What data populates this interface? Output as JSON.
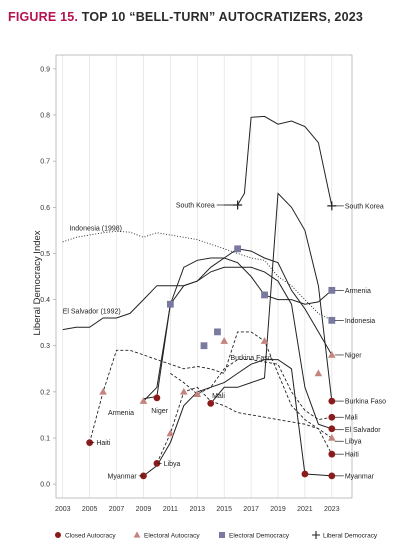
{
  "title": {
    "figure_label": "FIGURE 15.",
    "text": "TOP 10 “BELL-TURN” AUTOCRATIZERS, 2023"
  },
  "colors": {
    "closed": "#8b1a1a",
    "electoral_autocracy": "#c4847e",
    "electoral_democracy": "#7a7aa0",
    "liberal": "#222222",
    "line": "#222222",
    "grid": "#dcdcdc",
    "axis": "#999999"
  },
  "chart_data": {
    "type": "line",
    "ylabel": "Liberal Democracy Index",
    "xlabel": "",
    "xlim": [
      2002.5,
      2024.5
    ],
    "ylim": [
      -0.03,
      0.93
    ],
    "x_ticks": [
      2003,
      2005,
      2007,
      2009,
      2011,
      2013,
      2015,
      2017,
      2019,
      2021,
      2023
    ],
    "y_ticks": [
      0.0,
      0.1,
      0.2,
      0.3,
      0.4,
      0.5,
      0.6,
      0.7,
      0.8,
      0.9
    ],
    "y_tick_labels": [
      "0.0",
      "0.1",
      "0.2",
      "0.3",
      "0.4",
      "0.5",
      "0.6",
      "0.7",
      "0.8",
      "0.9"
    ],
    "grid": "vertical",
    "legend": [
      {
        "key": "closed",
        "label": "Closed Autocracy"
      },
      {
        "key": "electoral_autocracy",
        "label": "Electoral Autocracy"
      },
      {
        "key": "electoral_democracy",
        "label": "Electoral Democracy"
      },
      {
        "key": "liberal",
        "label": "Liberal Democracy"
      }
    ],
    "legend_position": "bottom",
    "series": [
      {
        "name": "South Korea",
        "style": "solid",
        "x": [
          2015,
          2016,
          2016.5,
          2017,
          2018,
          2019,
          2020,
          2021,
          2022,
          2023
        ],
        "y": [
          0.605,
          0.605,
          0.63,
          0.795,
          0.797,
          0.78,
          0.787,
          0.775,
          0.74,
          0.603
        ],
        "start": {
          "x": 2016,
          "y": 0.605,
          "regime": "liberal"
        },
        "end": {
          "x": 2023,
          "y": 0.603,
          "regime": "liberal"
        },
        "start_label": {
          "text": "South Korea",
          "x": 2014.3,
          "y": 0.605,
          "anchor": "end",
          "leader": true
        },
        "end_label": {
          "text": "South Korea",
          "leader": true
        }
      },
      {
        "name": "Indonesia",
        "style": "dotted",
        "x": [
          2003,
          2004,
          2005,
          2006,
          2007,
          2008,
          2009,
          2010,
          2011,
          2012,
          2013,
          2014,
          2015,
          2016,
          2017,
          2018,
          2019,
          2020,
          2021,
          2022,
          2023
        ],
        "y": [
          0.525,
          0.535,
          0.54,
          0.545,
          0.548,
          0.546,
          0.535,
          0.545,
          0.54,
          0.535,
          0.53,
          0.52,
          0.51,
          0.5,
          0.49,
          0.485,
          0.45,
          0.43,
          0.4,
          0.37,
          0.355
        ],
        "end": {
          "x": 2023,
          "y": 0.355,
          "regime": "electoral_democracy"
        },
        "start_label": {
          "text": "Indonesia (1998)",
          "x": 2003.5,
          "y": 0.555,
          "anchor": "start",
          "leader": false
        },
        "end_label": {
          "text": "Indonesia",
          "leader": true
        }
      },
      {
        "name": "Armenia",
        "style": "solid",
        "x": [
          2009,
          2010,
          2011,
          2012,
          2013,
          2014,
          2015,
          2016,
          2017,
          2018,
          2019,
          2020,
          2021,
          2022,
          2023
        ],
        "y": [
          0.185,
          0.19,
          0.39,
          0.47,
          0.485,
          0.49,
          0.49,
          0.48,
          0.45,
          0.41,
          0.4,
          0.4,
          0.39,
          0.395,
          0.42
        ],
        "start": {
          "x": 2010,
          "y": 0.187,
          "regime": "closed"
        },
        "markers": [
          {
            "x": 2011,
            "y": 0.39,
            "regime": "electoral_democracy"
          }
        ],
        "end": {
          "x": 2023,
          "y": 0.42,
          "regime": "electoral_democracy"
        },
        "start_label": {
          "text": "Armenia",
          "x": 2008.3,
          "y": 0.155,
          "anchor": "end",
          "leader": false
        },
        "end_label": {
          "text": "Armenia",
          "leader": true
        }
      },
      {
        "name": "Niger",
        "style": "solid",
        "x": [
          2009,
          2010,
          2011,
          2012,
          2013,
          2014,
          2015,
          2016,
          2017,
          2018,
          2019,
          2020,
          2021,
          2022,
          2023
        ],
        "y": [
          0.18,
          0.21,
          0.39,
          0.43,
          0.44,
          0.47,
          0.49,
          0.51,
          0.505,
          0.49,
          0.48,
          0.42,
          0.38,
          0.33,
          0.28
        ],
        "start": {
          "x": 2009,
          "y": 0.18,
          "regime": "electoral_autocracy"
        },
        "end": {
          "x": 2023,
          "y": 0.28,
          "regime": "electoral_autocracy"
        },
        "start_label": {
          "text": "Niger",
          "x": 2010.2,
          "y": 0.16,
          "anchor": "middle",
          "leader": false
        },
        "end_label": {
          "text": "Niger",
          "leader": true
        }
      },
      {
        "name": "El Salvador",
        "style": "solid",
        "x": [
          2003,
          2004,
          2005,
          2006,
          2007,
          2008,
          2009,
          2010,
          2011,
          2012,
          2013,
          2014,
          2015,
          2016,
          2017,
          2018,
          2019,
          2020,
          2021,
          2022,
          2023
        ],
        "y": [
          0.335,
          0.34,
          0.34,
          0.36,
          0.36,
          0.37,
          0.4,
          0.43,
          0.43,
          0.43,
          0.44,
          0.46,
          0.47,
          0.47,
          0.47,
          0.46,
          0.44,
          0.39,
          0.21,
          0.13,
          0.12
        ],
        "end": {
          "x": 2023,
          "y": 0.12,
          "regime": "closed"
        },
        "start_label": {
          "text": "El Salvador (1992)",
          "x": 2003,
          "y": 0.375,
          "anchor": "start",
          "leader": false
        },
        "end_label": {
          "text": "El Salvador",
          "leader": true
        }
      },
      {
        "name": "Burkina Faso",
        "style": "solid",
        "x": [
          2014,
          2015,
          2016,
          2017,
          2018,
          2019,
          2020,
          2021,
          2022,
          2023
        ],
        "y": [
          0.175,
          0.21,
          0.21,
          0.22,
          0.23,
          0.63,
          0.6,
          0.55,
          0.43,
          0.18
        ],
        "start": {
          "x": 2014,
          "y": 0.175,
          "regime": "closed"
        },
        "end": {
          "x": 2023,
          "y": 0.18,
          "regime": "closed"
        },
        "start_label": {
          "text": "Burkina Faso",
          "x": 2017,
          "y": 0.275,
          "anchor": "middle",
          "leader": false
        },
        "end_label": {
          "text": "Burkina Faso",
          "leader": true
        }
      },
      {
        "name": "Mali",
        "style": "dashed",
        "x": [
          2011,
          2012,
          2013,
          2014,
          2015,
          2016,
          2017,
          2018,
          2019,
          2020,
          2021,
          2022,
          2023
        ],
        "y": [
          0.24,
          0.22,
          0.195,
          0.21,
          0.25,
          0.27,
          0.27,
          0.265,
          0.26,
          0.2,
          0.16,
          0.14,
          0.145
        ],
        "start": {
          "x": 2013,
          "y": 0.195,
          "regime": "electoral_autocracy"
        },
        "markers": [
          {
            "x": 2013.5,
            "y": 0.3,
            "regime": "electoral_democracy"
          },
          {
            "x": 2015,
            "y": 0.31,
            "regime": "electoral_autocracy"
          }
        ],
        "end": {
          "x": 2023,
          "y": 0.145,
          "regime": "closed"
        },
        "start_label": {
          "text": "Mali",
          "x": 2014.1,
          "y": 0.192,
          "anchor": "start",
          "leader": false
        },
        "end_label": {
          "text": "Mali",
          "leader": true
        }
      },
      {
        "name": "Haiti",
        "style": "dashed",
        "x": [
          2005,
          2006,
          2007,
          2008,
          2009,
          2010,
          2011,
          2012,
          2013,
          2014,
          2015,
          2016,
          2017,
          2018,
          2019,
          2020,
          2021,
          2022,
          2023
        ],
        "y": [
          0.09,
          0.2,
          0.29,
          0.29,
          0.28,
          0.27,
          0.26,
          0.25,
          0.255,
          0.25,
          0.24,
          0.33,
          0.33,
          0.31,
          0.24,
          0.17,
          0.14,
          0.12,
          0.065
        ],
        "start": {
          "x": 2005,
          "y": 0.09,
          "regime": "closed"
        },
        "markers": [
          {
            "x": 2006,
            "y": 0.2,
            "regime": "electoral_autocracy"
          },
          {
            "x": 2016,
            "y": 0.51,
            "regime": "electoral_democracy"
          },
          {
            "x": 2018,
            "y": 0.41,
            "regime": "electoral_democracy"
          },
          {
            "x": 2018,
            "y": 0.31,
            "regime": "electoral_autocracy"
          },
          {
            "x": 2022,
            "y": 0.24,
            "regime": "electoral_autocracy"
          }
        ],
        "end": {
          "x": 2023,
          "y": 0.065,
          "regime": "closed"
        },
        "start_label": {
          "text": "Haiti",
          "x": 2005.5,
          "y": 0.09,
          "anchor": "start",
          "leader": true
        },
        "end_label": {
          "text": "Haiti",
          "leader": true
        }
      },
      {
        "name": "Libya",
        "style": "dashed",
        "x": [
          2010,
          2011,
          2012,
          2013,
          2014,
          2015,
          2016,
          2017,
          2018,
          2019,
          2020,
          2021,
          2022,
          2023
        ],
        "y": [
          0.045,
          0.11,
          0.2,
          0.21,
          0.18,
          0.17,
          0.155,
          0.15,
          0.145,
          0.14,
          0.135,
          0.13,
          0.12,
          0.1
        ],
        "start": {
          "x": 2010,
          "y": 0.045,
          "regime": "closed"
        },
        "markers": [
          {
            "x": 2011,
            "y": 0.11,
            "regime": "electoral_autocracy"
          },
          {
            "x": 2012,
            "y": 0.2,
            "regime": "electoral_autocracy"
          },
          {
            "x": 2014.5,
            "y": 0.33,
            "regime": "electoral_democracy"
          }
        ],
        "end": {
          "x": 2023,
          "y": 0.1,
          "regime": "electoral_autocracy"
        },
        "start_label": {
          "text": "Libya",
          "x": 2010.5,
          "y": 0.045,
          "anchor": "start",
          "leader": true
        },
        "end_label": {
          "text": "Libya",
          "leader": true
        }
      },
      {
        "name": "Myanmar",
        "style": "solid",
        "x": [
          2009,
          2010,
          2011,
          2012,
          2013,
          2014,
          2015,
          2016,
          2017,
          2018,
          2019,
          2020,
          2021,
          2022,
          2023
        ],
        "y": [
          0.018,
          0.04,
          0.09,
          0.17,
          0.2,
          0.21,
          0.22,
          0.24,
          0.26,
          0.27,
          0.27,
          0.25,
          0.022,
          0.02,
          0.018
        ],
        "start": {
          "x": 2009,
          "y": 0.018,
          "regime": "closed"
        },
        "markers": [
          {
            "x": 2021,
            "y": 0.022,
            "regime": "closed"
          }
        ],
        "end": {
          "x": 2023,
          "y": 0.018,
          "regime": "closed"
        },
        "start_label": {
          "text": "Myanmar",
          "x": 2008.5,
          "y": 0.018,
          "anchor": "end",
          "leader": true
        },
        "end_label": {
          "text": "Myanmar",
          "leader": true
        }
      }
    ],
    "right_labels": [
      {
        "text": "South Korea",
        "y": 0.603
      },
      {
        "text": "Armenia",
        "y": 0.42
      },
      {
        "text": "Indonesia",
        "y": 0.355
      },
      {
        "text": "Niger",
        "y": 0.28
      },
      {
        "text": "Burkina Faso",
        "y": 0.18
      },
      {
        "text": "Mali",
        "y": 0.145
      },
      {
        "text": "El Salvador",
        "y": 0.118
      },
      {
        "text": "Libya",
        "y": 0.093
      },
      {
        "text": "Haiti",
        "y": 0.065
      },
      {
        "text": "Myanmar",
        "y": 0.018
      }
    ]
  }
}
